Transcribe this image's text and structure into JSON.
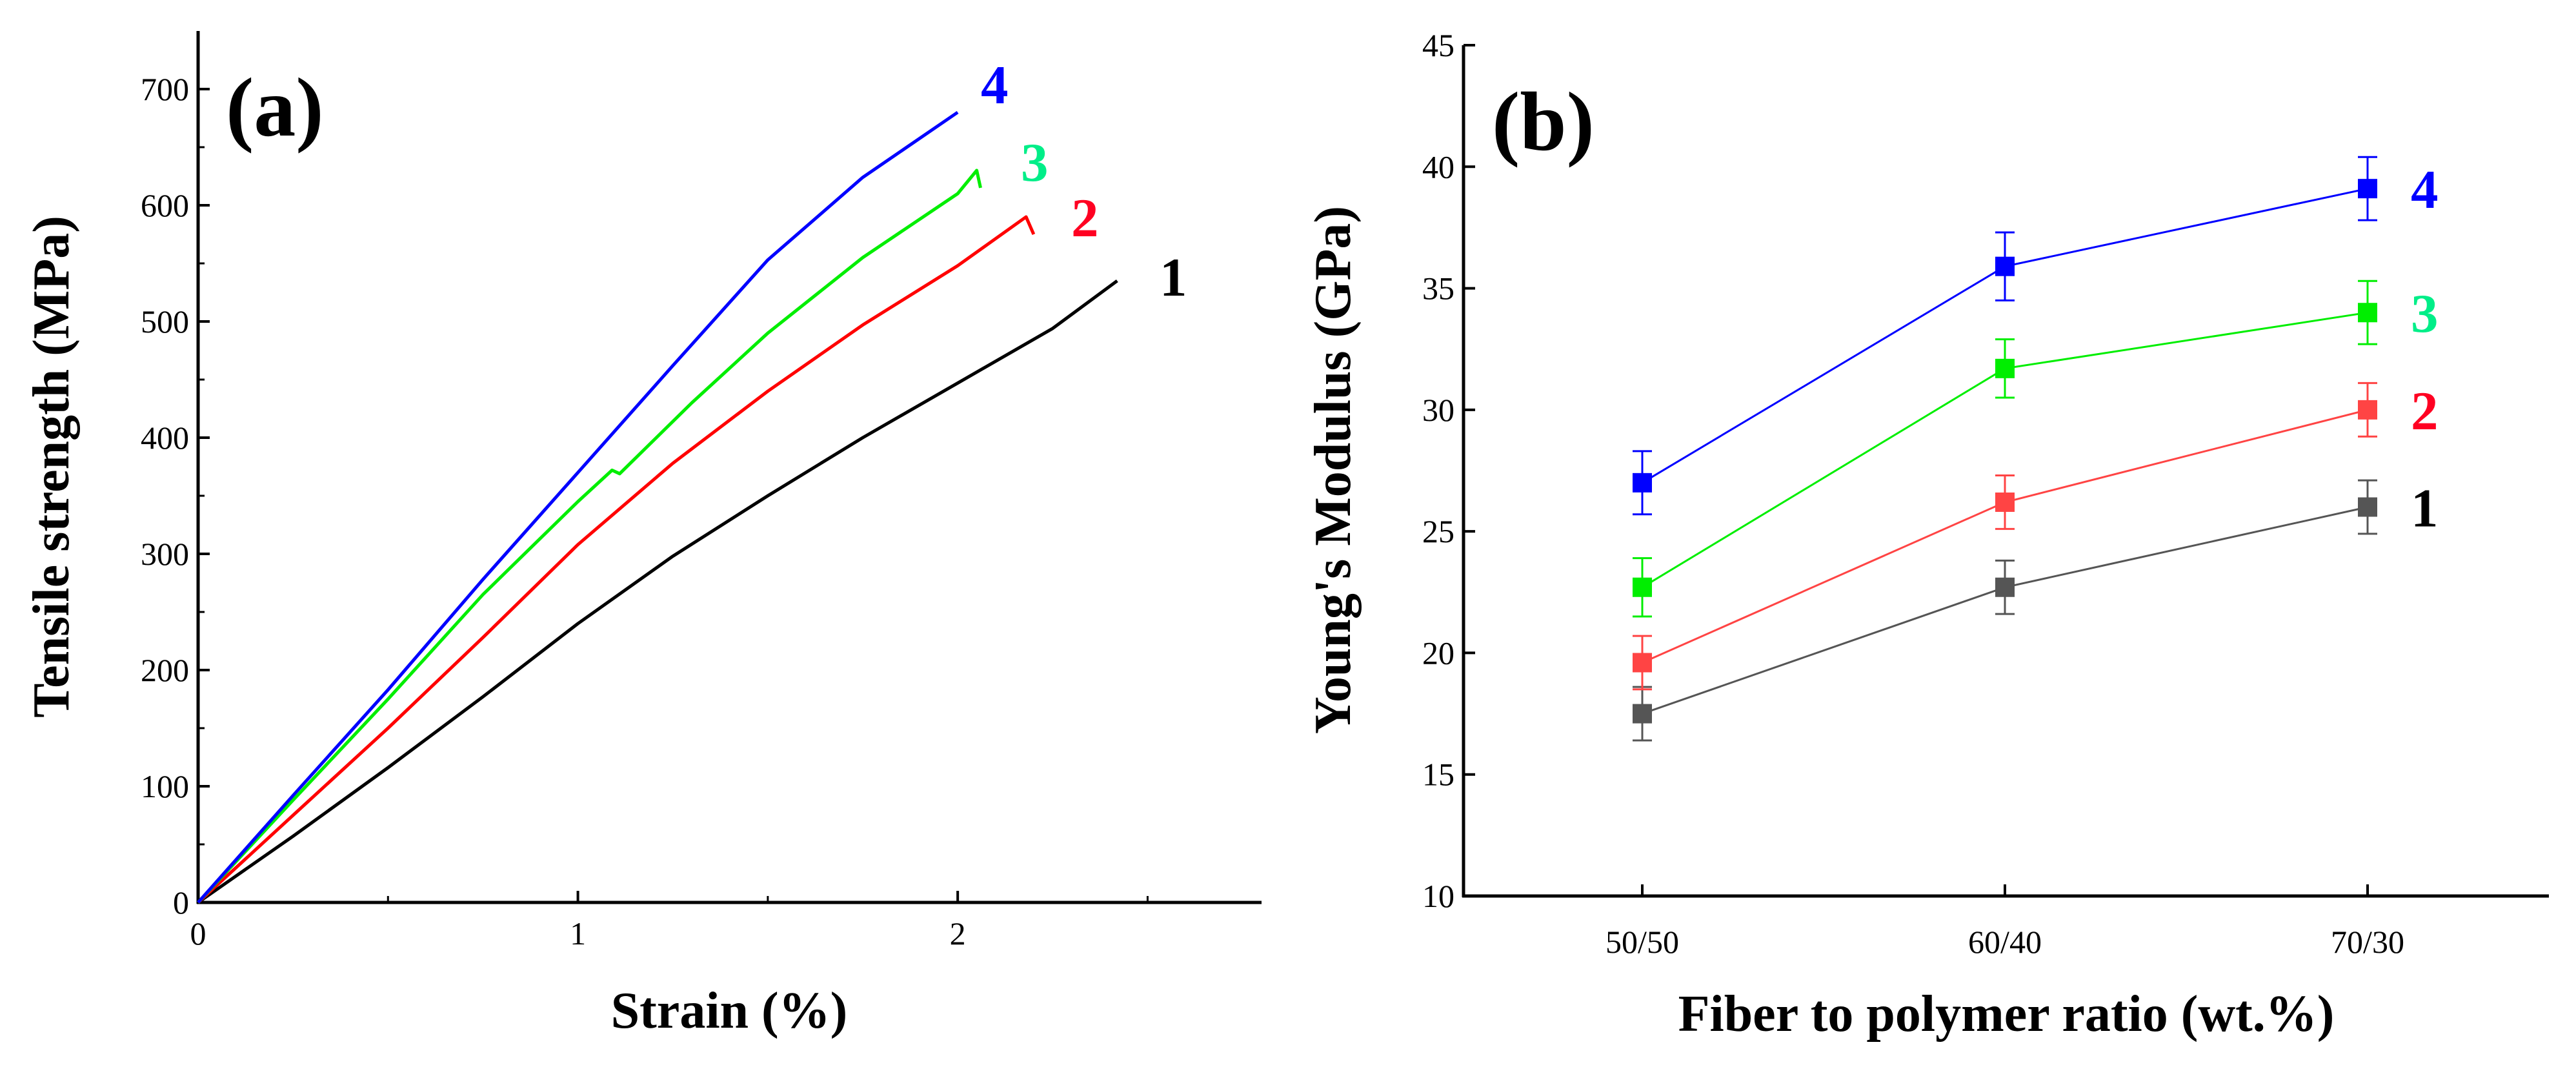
{
  "chart_data": [
    {
      "panel": "(a)",
      "type": "line",
      "title": "",
      "xlabel": "Strain (%)",
      "ylabel": "Tensile strength (MPa)",
      "xlim": [
        0,
        2.8
      ],
      "ylim": [
        0,
        750
      ],
      "xticks": [
        0,
        1,
        2
      ],
      "yticks": [
        0,
        100,
        200,
        300,
        400,
        500,
        600,
        700
      ],
      "series": [
        {
          "name": "1",
          "color": "#000000",
          "x": [
            0,
            0.25,
            0.5,
            0.75,
            1.0,
            1.25,
            1.5,
            1.75,
            2.0,
            2.25,
            2.42
          ],
          "y": [
            0,
            57,
            116,
            177,
            240,
            298,
            350,
            400,
            447,
            494,
            535
          ]
        },
        {
          "name": "2",
          "color": "#ff0000",
          "x": [
            0,
            0.25,
            0.5,
            0.75,
            1.0,
            1.25,
            1.5,
            1.75,
            2.0,
            2.18,
            2.2
          ],
          "y": [
            0,
            75,
            150,
            228,
            308,
            378,
            440,
            497,
            548,
            590,
            575
          ]
        },
        {
          "name": "3",
          "color": "#00ee00",
          "x": [
            0,
            0.25,
            0.5,
            0.75,
            1.0,
            1.09,
            1.11,
            1.3,
            1.5,
            1.75,
            2.0,
            2.05,
            2.06
          ],
          "y": [
            0,
            88,
            175,
            265,
            345,
            372,
            369,
            430,
            490,
            555,
            610,
            630,
            615
          ]
        },
        {
          "name": "4",
          "color": "#0000ff",
          "x": [
            0,
            0.25,
            0.5,
            0.75,
            1.0,
            1.25,
            1.5,
            1.75,
            2.0
          ],
          "y": [
            0,
            92,
            183,
            278,
            370,
            462,
            553,
            624,
            680
          ]
        }
      ],
      "annotations": [
        "(a)"
      ]
    },
    {
      "panel": "(b)",
      "type": "line",
      "title": "",
      "xlabel": "Fiber to polymer ratio (wt.%)",
      "ylabel": "Young's Modulus (GPa)",
      "categories": [
        "50/50",
        "60/40",
        "70/30"
      ],
      "ylim": [
        10,
        45
      ],
      "yticks": [
        10,
        15,
        20,
        25,
        30,
        35,
        40,
        45
      ],
      "series": [
        {
          "name": "1",
          "color": "#555555",
          "values": [
            17.5,
            22.7,
            26.0
          ],
          "errors": [
            1.1,
            1.1,
            1.1
          ]
        },
        {
          "name": "2",
          "color": "#ff4444",
          "values": [
            19.6,
            26.2,
            30.0
          ],
          "errors": [
            1.1,
            1.1,
            1.1
          ]
        },
        {
          "name": "3",
          "color": "#00ee00",
          "values": [
            22.7,
            31.7,
            34.0
          ],
          "errors": [
            1.2,
            1.2,
            1.3
          ]
        },
        {
          "name": "4",
          "color": "#0000ff",
          "values": [
            27.0,
            35.9,
            39.1
          ],
          "errors": [
            1.3,
            1.4,
            1.3
          ]
        }
      ],
      "annotations": [
        "(b)"
      ]
    }
  ],
  "label_colors": {
    "1": "#000000",
    "2": "#ff0022",
    "3": "#00ee88",
    "4": "#0000ff"
  }
}
